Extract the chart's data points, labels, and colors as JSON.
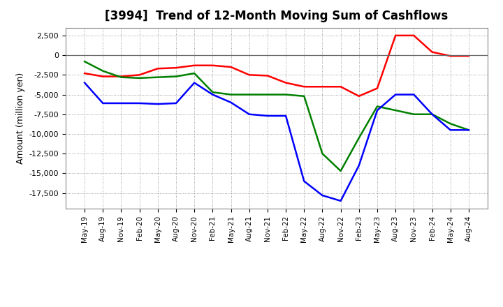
{
  "title": "[3994]  Trend of 12-Month Moving Sum of Cashflows",
  "ylabel": "Amount (million yen)",
  "x_labels": [
    "May-19",
    "Aug-19",
    "Nov-19",
    "Feb-20",
    "May-20",
    "Aug-20",
    "Nov-20",
    "Feb-21",
    "May-21",
    "Aug-21",
    "Nov-21",
    "Feb-22",
    "May-22",
    "Aug-22",
    "Nov-22",
    "Feb-23",
    "May-23",
    "Aug-23",
    "Nov-23",
    "Feb-24",
    "May-24",
    "Aug-24"
  ],
  "operating_cashflow": [
    -2300,
    -2700,
    -2700,
    -2500,
    -1700,
    -1600,
    -1300,
    -1300,
    -1500,
    -2500,
    -2600,
    -3500,
    -4000,
    -4000,
    -4000,
    -5200,
    -4200,
    2500,
    2500,
    400,
    -100,
    -100
  ],
  "investing_cashflow": [
    -800,
    -2000,
    -2800,
    -2900,
    -2800,
    -2700,
    -2300,
    -4700,
    -5000,
    -5000,
    -5000,
    -5000,
    -5200,
    -12500,
    -14700,
    -10500,
    -6500,
    -7000,
    -7500,
    -7500,
    -8700,
    -9500
  ],
  "free_cashflow": [
    -3500,
    -6100,
    -6100,
    -6100,
    -6200,
    -6100,
    -3500,
    -5000,
    -6000,
    -7500,
    -7700,
    -7700,
    -16000,
    -17800,
    -18500,
    -14000,
    -7000,
    -5000,
    -5000,
    -7500,
    -9500,
    -9500
  ],
  "operating_color": "#ff0000",
  "investing_color": "#008000",
  "free_color": "#0000ff",
  "ylim_min": -19500,
  "ylim_max": 3500,
  "yticks": [
    2500,
    0,
    -2500,
    -5000,
    -7500,
    -10000,
    -12500,
    -15000,
    -17500
  ],
  "background_color": "#ffffff",
  "grid_color": "#888888"
}
